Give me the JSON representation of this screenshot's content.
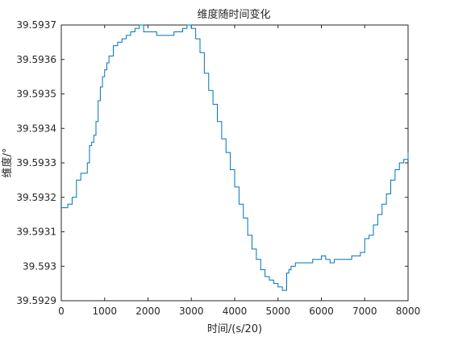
{
  "chart_data": {
    "type": "line",
    "title": "维度随时间变化",
    "xlabel": "时间/(s/20)",
    "ylabel": "维度/°",
    "xlim": [
      0,
      8000
    ],
    "ylim": [
      39.5929,
      39.5937
    ],
    "xticks": [
      0,
      1000,
      2000,
      3000,
      4000,
      5000,
      6000,
      7000,
      8000
    ],
    "xtick_labels": [
      "0",
      "1000",
      "2000",
      "3000",
      "4000",
      "5000",
      "6000",
      "7000",
      "8000"
    ],
    "yticks": [
      39.5929,
      39.593,
      39.5931,
      39.5932,
      39.5933,
      39.5934,
      39.5935,
      39.5936,
      39.5937
    ],
    "ytick_labels": [
      "39.5929",
      "39.593",
      "39.5931",
      "39.5932",
      "39.5933",
      "39.5934",
      "39.5935",
      "39.5936",
      "39.5937"
    ],
    "grid": false,
    "legend": "none",
    "line_color": "#0072bd",
    "series": [
      {
        "x": [
          0,
          150,
          250,
          350,
          450,
          500,
          600,
          650,
          700,
          750,
          800,
          850,
          900,
          950,
          1000,
          1050,
          1100,
          1200,
          1300,
          1400,
          1500,
          1600,
          1700,
          1800,
          1900,
          2000,
          2100,
          2200,
          2400,
          2600,
          2800,
          2900,
          3000,
          3100,
          3200,
          3300,
          3400,
          3500,
          3600,
          3700,
          3800,
          3900,
          4000,
          4100,
          4200,
          4300,
          4400,
          4500,
          4600,
          4700,
          4800,
          4900,
          5000,
          5100,
          5200,
          5250,
          5300,
          5400,
          5500,
          5600,
          5700,
          5800,
          5900,
          6000,
          6100,
          6200,
          6300,
          6400,
          6500,
          6600,
          6700,
          6800,
          6900,
          7000,
          7100,
          7200,
          7300,
          7400,
          7500,
          7600,
          7700,
          7800,
          7900,
          8000
        ],
        "values": [
          39.59317,
          39.59318,
          39.5932,
          39.59325,
          39.59327,
          39.59327,
          39.5933,
          39.59335,
          39.59336,
          39.59338,
          39.59342,
          39.59348,
          39.59352,
          39.59355,
          39.59357,
          39.59359,
          39.59361,
          39.59364,
          39.59365,
          39.59366,
          39.59367,
          39.59368,
          39.59369,
          39.5937,
          39.59368,
          39.59368,
          39.59368,
          39.59367,
          39.59367,
          39.59368,
          39.59369,
          39.5937,
          39.59369,
          39.59366,
          39.59362,
          39.59356,
          39.59351,
          39.59347,
          39.59342,
          39.59337,
          39.59333,
          39.59328,
          39.59323,
          39.59318,
          39.59314,
          39.59309,
          39.59305,
          39.59302,
          39.59299,
          39.59297,
          39.59296,
          39.59295,
          39.59294,
          39.59293,
          39.59298,
          39.59299,
          39.593,
          39.59301,
          39.59301,
          39.59301,
          39.59301,
          39.59302,
          39.59302,
          39.59303,
          39.59302,
          39.59301,
          39.59302,
          39.59302,
          39.59302,
          39.59302,
          39.59303,
          39.59303,
          39.59304,
          39.59308,
          39.59309,
          39.59312,
          39.59315,
          39.59318,
          39.59321,
          39.59325,
          39.59328,
          39.5933,
          39.59331,
          39.59333
        ]
      }
    ]
  }
}
